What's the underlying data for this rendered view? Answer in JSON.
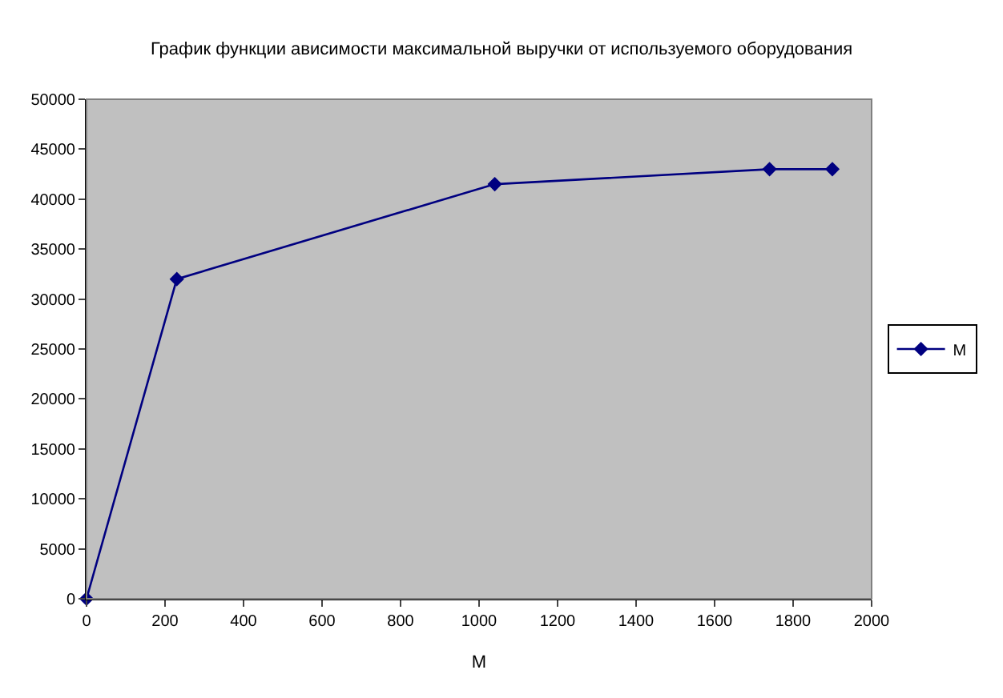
{
  "chart_data": {
    "type": "line",
    "title": "График функции ависимости максимальной выручки от используемого оборудования",
    "xlabel": "M",
    "x": [
      0,
      230,
      1040,
      1740,
      1900
    ],
    "series": [
      {
        "name": "M",
        "color": "#000080",
        "values": [
          0,
          32000,
          41500,
          43000,
          43000
        ]
      }
    ],
    "xlim": [
      0,
      2000
    ],
    "xticks": [
      0,
      200,
      400,
      600,
      800,
      1000,
      1200,
      1400,
      1600,
      1800,
      2000
    ],
    "ylim": [
      0,
      50000
    ],
    "yticks": [
      0,
      5000,
      10000,
      15000,
      20000,
      25000,
      30000,
      35000,
      40000,
      45000,
      50000
    ],
    "grid": false,
    "legend": "right",
    "marker": "diamond",
    "line_style": "solid"
  }
}
